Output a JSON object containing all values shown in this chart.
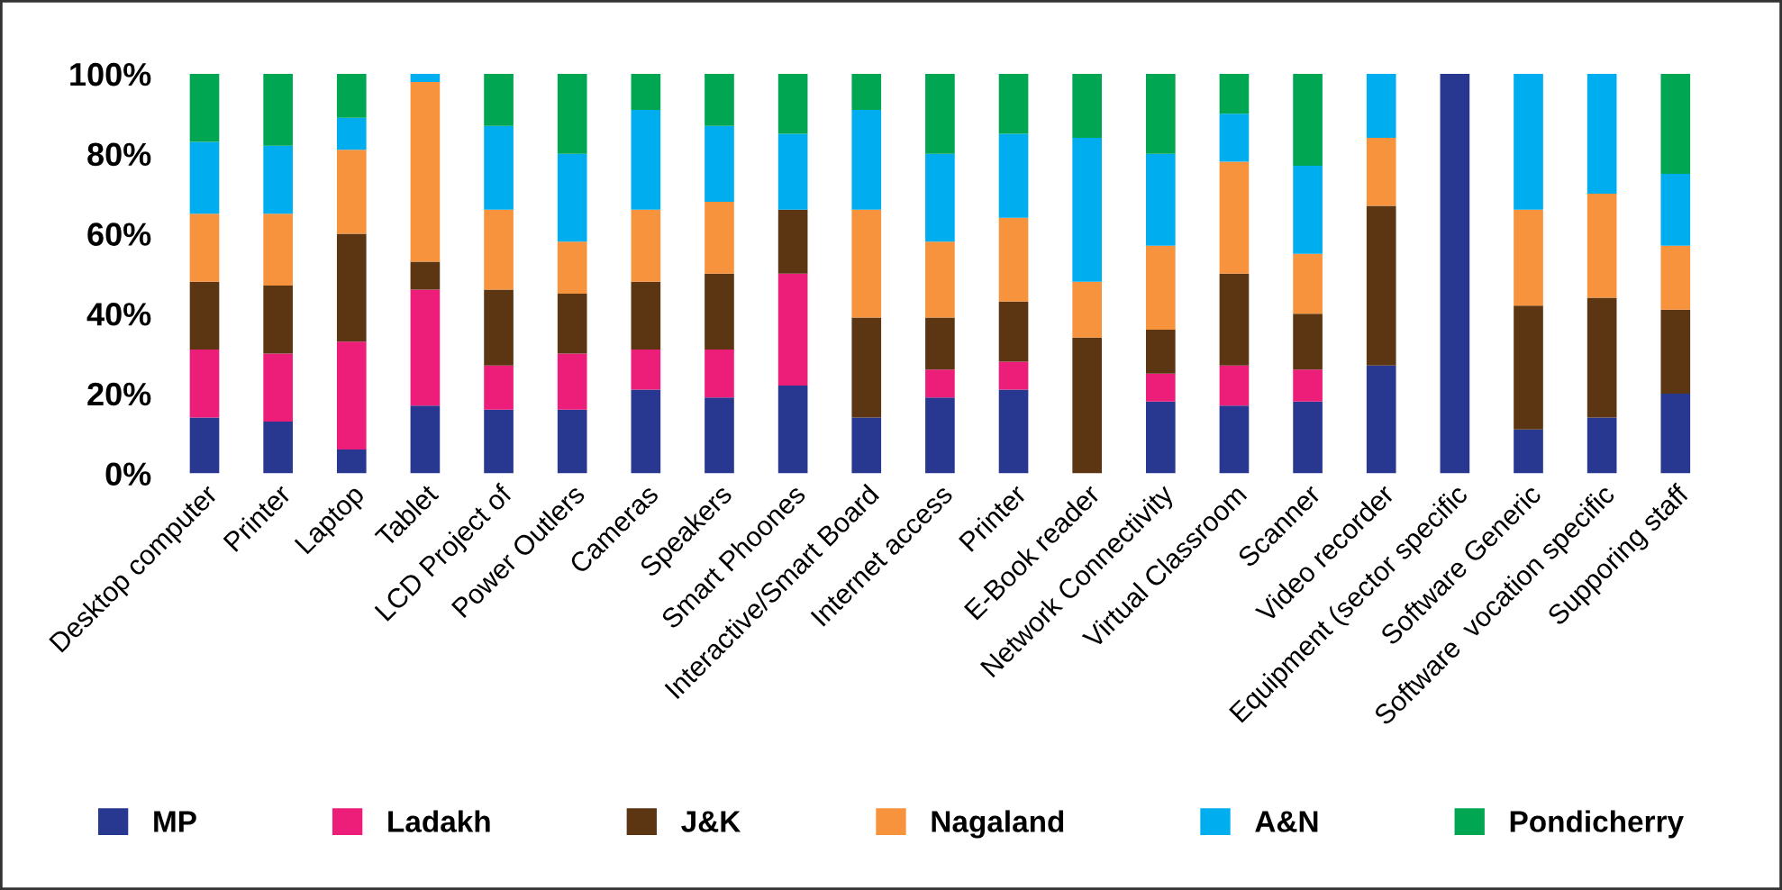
{
  "chart_data": {
    "type": "bar",
    "stacked": true,
    "categories": [
      "Desktop computer",
      "Printer",
      "Laptop",
      "Tablet",
      "LCD Project of",
      "Power Outlers",
      "Cameras",
      "Speakers",
      "Smart Phoones",
      "Interactive/Smart Board",
      "Internet access",
      "Printer",
      "E-Book reader",
      "Network Connectivity",
      "Virtual Classroom",
      "Scanner",
      "Video recorder",
      "Equipment (sector specific",
      "Software Generic",
      "Software  vocation specific",
      "Supporing staff"
    ],
    "series": [
      {
        "name": "MP",
        "color": "#283891",
        "values": [
          14,
          13,
          6,
          17,
          16,
          16,
          21,
          19,
          22,
          14,
          19,
          21,
          0,
          18,
          17,
          18,
          27,
          100,
          11,
          14,
          20
        ]
      },
      {
        "name": "Ladakh",
        "color": "#ec1e79",
        "values": [
          17,
          17,
          27,
          29,
          11,
          14,
          10,
          12,
          28,
          0,
          7,
          7,
          0,
          7,
          10,
          8,
          0,
          0,
          0,
          0,
          0
        ]
      },
      {
        "name": "J&K",
        "color": "#5c3612",
        "values": [
          17,
          17,
          27,
          7,
          19,
          15,
          17,
          19,
          16,
          25,
          13,
          15,
          34,
          11,
          23,
          14,
          40,
          0,
          31,
          30,
          21
        ]
      },
      {
        "name": "Nagaland",
        "color": "#f7923d",
        "values": [
          17,
          18,
          21,
          45,
          20,
          13,
          18,
          18,
          0,
          27,
          19,
          21,
          14,
          21,
          28,
          15,
          17,
          0,
          24,
          26,
          16
        ]
      },
      {
        "name": "A&N",
        "color": "#00adef",
        "values": [
          18,
          17,
          8,
          2,
          21,
          22,
          25,
          19,
          19,
          25,
          22,
          21,
          36,
          23,
          12,
          22,
          16,
          0,
          34,
          30,
          18
        ]
      },
      {
        "name": "Pondicherry",
        "color": "#00a651",
        "values": [
          17,
          18,
          11,
          0,
          13,
          20,
          9,
          13,
          15,
          9,
          20,
          15,
          16,
          20,
          10,
          23,
          0,
          0,
          0,
          0,
          25
        ]
      }
    ],
    "ylim": [
      0,
      100
    ],
    "yticks": [
      {
        "value": 0,
        "label": "0%"
      },
      {
        "value": 20,
        "label": "20%"
      },
      {
        "value": 40,
        "label": "40%"
      },
      {
        "value": 60,
        "label": "60%"
      },
      {
        "value": 80,
        "label": "80%"
      },
      {
        "value": 100,
        "label": "100%"
      }
    ],
    "grid": false,
    "legend": "bottom"
  }
}
